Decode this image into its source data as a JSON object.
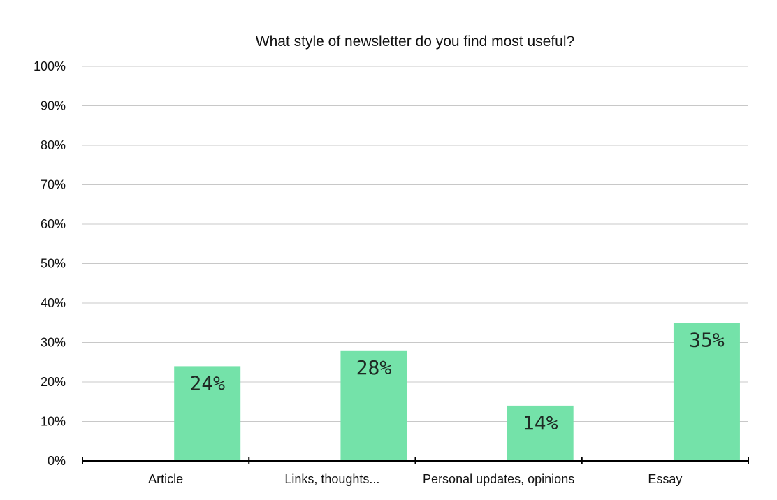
{
  "chart_data": {
    "type": "bar",
    "title": "What style of newsletter do you find most useful?",
    "xlabel": "",
    "ylabel": "",
    "categories": [
      "Article",
      "Links, thoughts...",
      "Personal updates, opinions",
      "Essay"
    ],
    "values": [
      24,
      28,
      14,
      35
    ],
    "value_labels": [
      "24%",
      "28%",
      "14%",
      "35%"
    ],
    "ylim": [
      0,
      100
    ],
    "y_ticks": [
      0,
      10,
      20,
      30,
      40,
      50,
      60,
      70,
      80,
      90,
      100
    ],
    "y_tick_labels": [
      "0%",
      "10%",
      "20%",
      "30%",
      "40%",
      "50%",
      "60%",
      "70%",
      "80%",
      "90%",
      "100%"
    ],
    "grid": true,
    "legend": "none",
    "bar_color": "#74e2a9",
    "grid_color": "#c8c8c8",
    "axis_color": "#000000"
  }
}
